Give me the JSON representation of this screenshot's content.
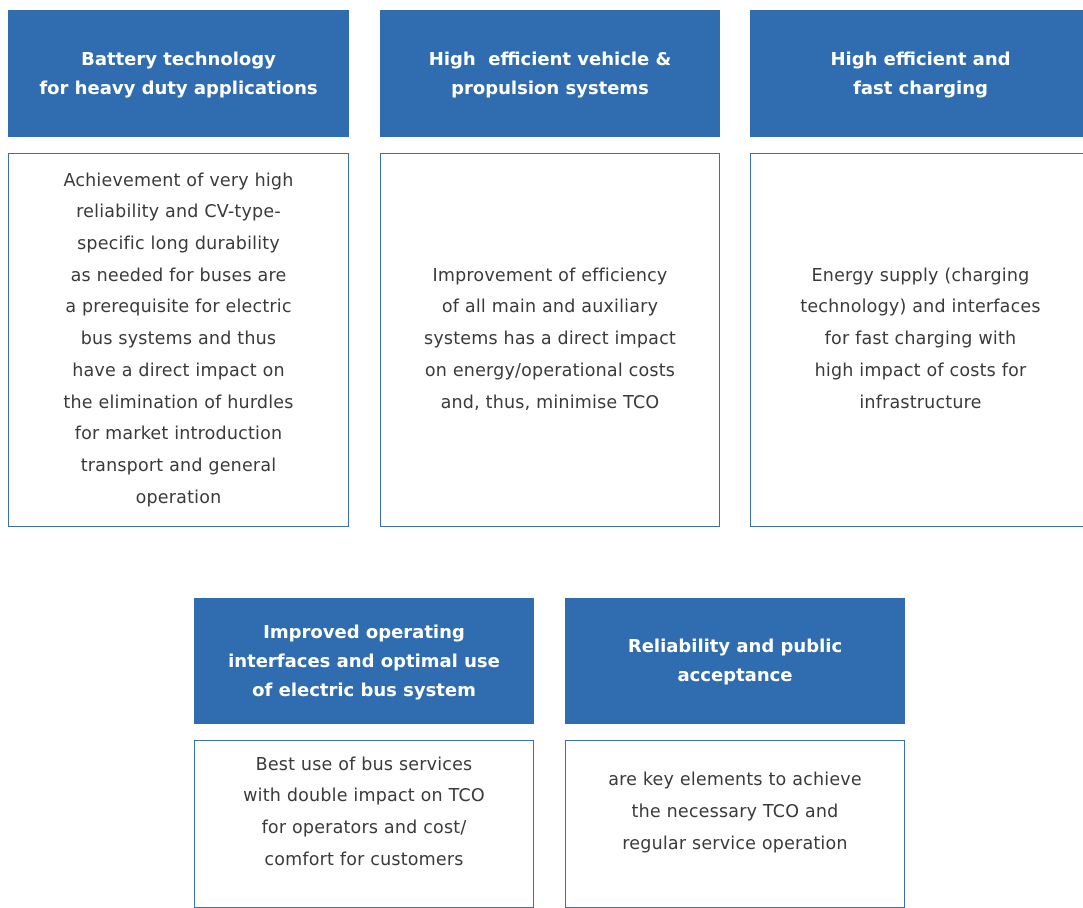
{
  "cards": [
    {
      "header": [
        "Battery technology",
        "for heavy duty applications"
      ],
      "body": [
        "Achievement of very high",
        "reliability and CV-type-",
        "specific long durability",
        "as needed for buses are",
        "a prerequisite for electric",
        "bus systems and thus",
        "have a direct impact on",
        "the elimination of hurdles",
        "for market introduction",
        "transport and general",
        "operation"
      ]
    },
    {
      "header": [
        "High  efficient vehicle &",
        "propulsion systems"
      ],
      "body": [
        "Improvement of efficiency",
        "of all main and auxiliary",
        "systems has a direct impact",
        "on energy/operational costs",
        "and, thus, minimise TCO"
      ]
    },
    {
      "header": [
        "High efficient and",
        "fast charging"
      ],
      "body": [
        "Energy supply (charging",
        "technology) and interfaces",
        "for fast charging with",
        "high impact of costs for",
        "infrastructure"
      ]
    },
    {
      "header": [
        "Improved operating",
        "interfaces and optimal use",
        "of electric bus system"
      ],
      "body": [
        "Best use of bus services",
        "with double impact on TCO",
        "for operators and cost/",
        "comfort for customers"
      ]
    },
    {
      "header": [
        "Reliability and public",
        "acceptance"
      ],
      "body": [
        "are key elements to achieve",
        "the necessary TCO and",
        "regular service operation"
      ]
    }
  ]
}
